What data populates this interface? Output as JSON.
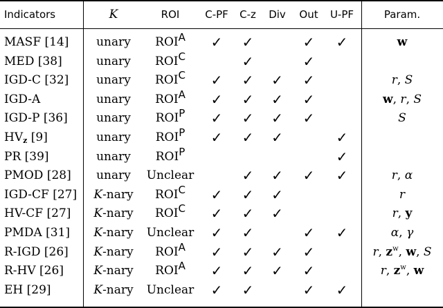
{
  "headers": [
    "Indicators",
    "K",
    "ROI",
    "C-PF",
    "C-z",
    "Div",
    "Out",
    "U-PF",
    "Param."
  ],
  "check_symbol": "✓",
  "rows": [
    {
      "indicator": "MASF [14]",
      "k": "unary",
      "roi": "ROI",
      "roi_sup": "A",
      "cpf": true,
      "cz": true,
      "div": false,
      "out": true,
      "upf": true,
      "param": "w"
    },
    {
      "indicator": "MED [38]",
      "k": "unary",
      "roi": "ROI",
      "roi_sup": "C",
      "cpf": false,
      "cz": true,
      "div": false,
      "out": true,
      "upf": false,
      "param": ""
    },
    {
      "indicator": "IGD-C [32]",
      "k": "unary",
      "roi": "ROI",
      "roi_sup": "C",
      "cpf": true,
      "cz": true,
      "div": true,
      "out": true,
      "upf": false,
      "param": "r, S"
    },
    {
      "indicator": "IGD-A",
      "k": "unary",
      "roi": "ROI",
      "roi_sup": "A",
      "cpf": true,
      "cz": true,
      "div": true,
      "out": true,
      "upf": false,
      "param": "w, r, S"
    },
    {
      "indicator": "IGD-P [36]",
      "k": "unary",
      "roi": "ROI",
      "roi_sup": "P",
      "cpf": true,
      "cz": true,
      "div": true,
      "out": true,
      "upf": false,
      "param": "S"
    },
    {
      "indicator": "HVz [9]",
      "k": "unary",
      "roi": "ROI",
      "roi_sup": "P",
      "cpf": true,
      "cz": true,
      "div": true,
      "out": false,
      "upf": true,
      "param": ""
    },
    {
      "indicator": "PR [39]",
      "k": "unary",
      "roi": "ROI",
      "roi_sup": "P",
      "cpf": false,
      "cz": false,
      "div": false,
      "out": false,
      "upf": true,
      "param": ""
    },
    {
      "indicator": "PMOD [28]",
      "k": "unary",
      "roi": "Unclear",
      "roi_sup": "",
      "cpf": false,
      "cz": true,
      "div": true,
      "out": true,
      "upf": true,
      "param": "r, α"
    },
    {
      "indicator": "IGD-CF [27]",
      "k": "K-nary",
      "roi": "ROI",
      "roi_sup": "C",
      "cpf": true,
      "cz": true,
      "div": true,
      "out": false,
      "upf": false,
      "param": "r"
    },
    {
      "indicator": "HV-CF [27]",
      "k": "K-nary",
      "roi": "ROI",
      "roi_sup": "C",
      "cpf": true,
      "cz": true,
      "div": true,
      "out": false,
      "upf": false,
      "param": "r, y"
    },
    {
      "indicator": "PMDA [31]",
      "k": "K-nary",
      "roi": "Unclear",
      "roi_sup": "",
      "cpf": true,
      "cz": true,
      "div": false,
      "out": true,
      "upf": true,
      "param": "α, γ"
    },
    {
      "indicator": "R-IGD [26]",
      "k": "K-nary",
      "roi": "ROI",
      "roi_sup": "A",
      "cpf": true,
      "cz": true,
      "div": true,
      "out": true,
      "upf": false,
      "param": "r, zʷ, w, S"
    },
    {
      "indicator": "R-HV [26]",
      "k": "K-nary",
      "roi": "ROI",
      "roi_sup": "A",
      "cpf": true,
      "cz": true,
      "div": true,
      "out": true,
      "upf": false,
      "param": "r, zʷ, w"
    },
    {
      "indicator": "EH [29]",
      "k": "K-nary",
      "roi": "Unclear",
      "roi_sup": "",
      "cpf": true,
      "cz": true,
      "div": false,
      "out": true,
      "upf": true,
      "param": ""
    }
  ]
}
